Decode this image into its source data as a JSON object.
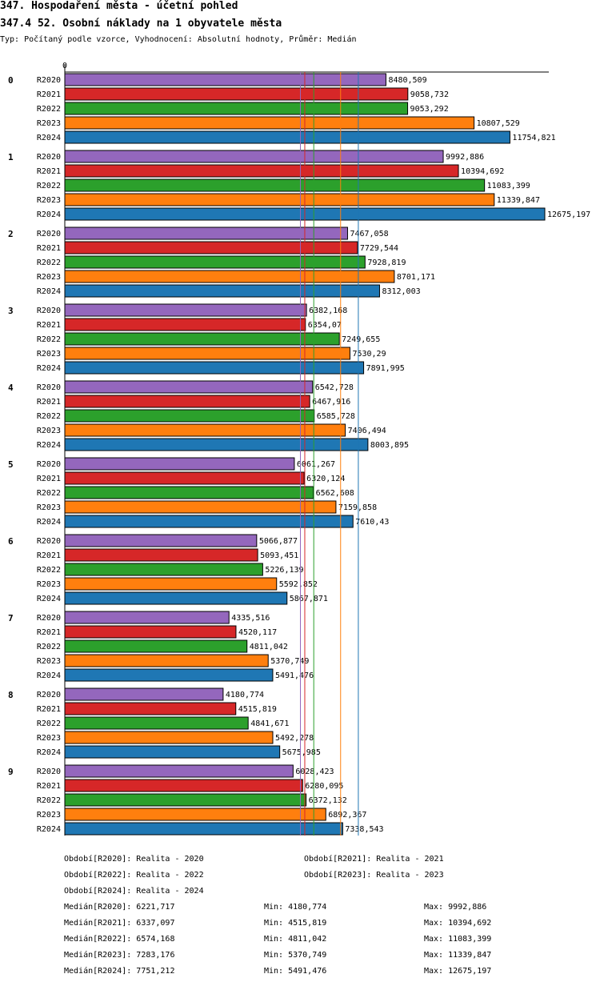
{
  "header": {
    "title": "347. Hospodaření města - účetní pohled",
    "subtitle": "347.4 52. Osobní náklady na 1 obyvatele města",
    "info": "Typ: Počítaný podle vzorce, Vyhodnocení: Absolutní hodnoty, Průměr: Medián"
  },
  "colors": {
    "R2020": "#9467bd",
    "R2021": "#d62728",
    "R2022": "#2ca02c",
    "R2023": "#ff7f0e",
    "R2024": "#1f77b4"
  },
  "chart_data": {
    "type": "bar",
    "orientation": "horizontal",
    "axis_min": 0,
    "axis_max": 12675.197,
    "axis_tick_label": "0",
    "categories": [
      "0",
      "1",
      "2",
      "3",
      "4",
      "5",
      "6",
      "7",
      "8",
      "9"
    ],
    "series": [
      {
        "name": "R2020",
        "values": [
          8480.509,
          9992.886,
          7467.058,
          6382.168,
          6542.728,
          6061.267,
          5066.877,
          4335.516,
          4180.774,
          6028.423
        ],
        "labels": [
          "8480,509",
          "9992,886",
          "7467,058",
          "6382,168",
          "6542,728",
          "6061,267",
          "5066,877",
          "4335,516",
          "4180,774",
          "6028,423"
        ]
      },
      {
        "name": "R2021",
        "values": [
          9058.732,
          10394.692,
          7729.544,
          6354.07,
          6467.916,
          6320.124,
          5093.451,
          4520.117,
          4515.819,
          6280.095
        ],
        "labels": [
          "9058,732",
          "10394,692",
          "7729,544",
          "6354,07",
          "6467,916",
          "6320,124",
          "5093,451",
          "4520,117",
          "4515,819",
          "6280,095"
        ]
      },
      {
        "name": "R2022",
        "values": [
          9053.292,
          11083.399,
          7928.819,
          7249.655,
          6585.728,
          6562.608,
          5226.139,
          4811.042,
          4841.671,
          6372.132
        ],
        "labels": [
          "9053,292",
          "11083,399",
          "7928,819",
          "7249,655",
          "6585,728",
          "6562,608",
          "5226,139",
          "4811,042",
          "4841,671",
          "6372,132"
        ]
      },
      {
        "name": "R2023",
        "values": [
          10807.529,
          11339.847,
          8701.171,
          7530.29,
          7406.494,
          7159.858,
          5592.852,
          5370.749,
          5492.278,
          6892.367
        ],
        "labels": [
          "10807,529",
          "11339,847",
          "8701,171",
          "7530,29",
          "7406,494",
          "7159,858",
          "5592,852",
          "5370,749",
          "5492,278",
          "6892,367"
        ]
      },
      {
        "name": "R2024",
        "values": [
          11754.821,
          12675.197,
          8312.003,
          7891.995,
          8003.895,
          7610.43,
          5867.871,
          5491.476,
          5675.985,
          7338.543
        ],
        "labels": [
          "11754,821",
          "12675,197",
          "8312,003",
          "7891,995",
          "8003,895",
          "7610,43",
          "5867,871",
          "5491,476",
          "5675,985",
          "7338,543"
        ]
      }
    ],
    "medians": [
      {
        "name": "R2020",
        "value": 6221.717
      },
      {
        "name": "R2021",
        "value": 6337.097
      },
      {
        "name": "R2022",
        "value": 6574.168
      },
      {
        "name": "R2023",
        "value": 7283.176
      },
      {
        "name": "R2024",
        "value": 7751.212
      }
    ],
    "legend": [
      "Období[R2020]: Realita - 2020",
      "Období[R2021]: Realita - 2021",
      "Období[R2022]: Realita - 2022",
      "Období[R2023]: Realita - 2023",
      "Období[R2024]: Realita - 2024"
    ],
    "stats": [
      {
        "median": "Medián[R2020]: 6221,717",
        "min": "Min: 4180,774",
        "max": "Max: 9992,886"
      },
      {
        "median": "Medián[R2021]: 6337,097",
        "min": "Min: 4515,819",
        "max": "Max: 10394,692"
      },
      {
        "median": "Medián[R2022]: 6574,168",
        "min": "Min: 4811,042",
        "max": "Max: 11083,399"
      },
      {
        "median": "Medián[R2023]: 7283,176",
        "min": "Min: 5370,749",
        "max": "Max: 11339,847"
      },
      {
        "median": "Medián[R2024]: 7751,212",
        "min": "Min: 5491,476",
        "max": "Max: 12675,197"
      }
    ]
  }
}
